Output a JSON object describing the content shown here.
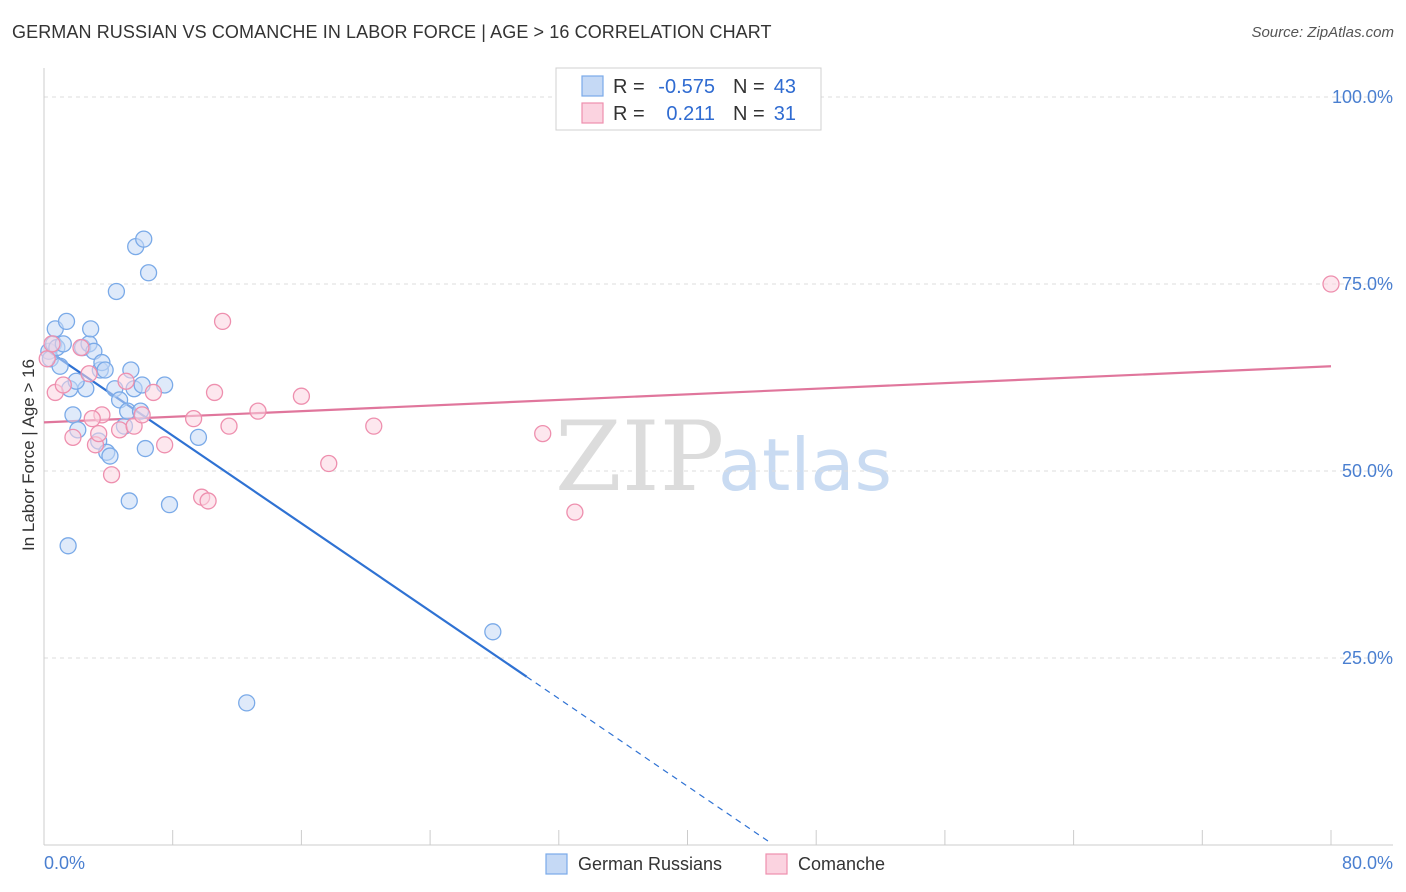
{
  "header": {
    "title": "GERMAN RUSSIAN VS COMANCHE IN LABOR FORCE | AGE > 16 CORRELATION CHART",
    "source": "Source: ZipAtlas.com"
  },
  "watermark": {
    "zip": "ZIP",
    "atlas": "atlas"
  },
  "legend": {
    "r_label": "R =",
    "n_label": "N =",
    "rows": [
      {
        "r": "-0.575",
        "n": "43",
        "color": "#7aaae8",
        "fill": "#c5d9f5"
      },
      {
        "r": "0.211",
        "n": "31",
        "color": "#ee8fae",
        "fill": "#fbd3e0"
      }
    ]
  },
  "chart_data": {
    "type": "scatter",
    "title": "GERMAN RUSSIAN VS COMANCHE IN LABOR FORCE | AGE > 16 CORRELATION CHART",
    "xlabel": "",
    "ylabel": "In Labor Force | Age > 16",
    "xlim": [
      0,
      80
    ],
    "ylim": [
      0,
      100
    ],
    "x_tick_labels": [
      "0.0%",
      "80.0%"
    ],
    "y_tick_labels": [
      "100.0%",
      "75.0%",
      "50.0%",
      "25.0%"
    ],
    "y_ticks": [
      100,
      75,
      50,
      25
    ],
    "series": [
      {
        "name": "German Russians",
        "color": "#7aaae8",
        "fill": "#c5d9f5",
        "line_color": "#2f72d3",
        "trend": {
          "x0": 0.3,
          "y0": 66.0,
          "x1": 30.0,
          "y1": 22.5,
          "dash_to_x": 45.0
        },
        "points": [
          [
            0.3,
            66.0
          ],
          [
            0.4,
            65.0
          ],
          [
            0.6,
            67.0
          ],
          [
            0.7,
            69.0
          ],
          [
            0.8,
            66.5
          ],
          [
            1.0,
            64.0
          ],
          [
            1.2,
            67.0
          ],
          [
            1.4,
            70.0
          ],
          [
            1.6,
            61.0
          ],
          [
            1.8,
            57.5
          ],
          [
            2.1,
            55.5
          ],
          [
            2.4,
            66.5
          ],
          [
            2.6,
            61.0
          ],
          [
            2.8,
            67.0
          ],
          [
            2.9,
            69.0
          ],
          [
            3.1,
            66.0
          ],
          [
            3.4,
            54.0
          ],
          [
            3.5,
            63.5
          ],
          [
            3.6,
            64.5
          ],
          [
            3.8,
            63.5
          ],
          [
            3.9,
            52.5
          ],
          [
            4.1,
            52.0
          ],
          [
            4.4,
            61.0
          ],
          [
            4.5,
            74.0
          ],
          [
            4.7,
            59.5
          ],
          [
            5.0,
            56.0
          ],
          [
            5.2,
            58.0
          ],
          [
            5.3,
            46.0
          ],
          [
            5.4,
            63.5
          ],
          [
            5.6,
            61.0
          ],
          [
            5.7,
            80.0
          ],
          [
            6.0,
            58.0
          ],
          [
            6.1,
            61.5
          ],
          [
            6.2,
            81.0
          ],
          [
            6.3,
            53.0
          ],
          [
            6.5,
            76.5
          ],
          [
            7.5,
            61.5
          ],
          [
            7.8,
            45.5
          ],
          [
            9.6,
            54.5
          ],
          [
            12.6,
            19.0
          ],
          [
            27.9,
            28.5
          ],
          [
            1.5,
            40.0
          ],
          [
            2.0,
            62.0
          ]
        ]
      },
      {
        "name": "Comanche",
        "color": "#ee8fae",
        "fill": "#fbd3e0",
        "line_color": "#e0769c",
        "trend": {
          "x0": 0.0,
          "y0": 56.5,
          "x1": 80.0,
          "y1": 64.0
        },
        "points": [
          [
            0.2,
            65.0
          ],
          [
            0.5,
            67.0
          ],
          [
            0.7,
            60.5
          ],
          [
            1.2,
            61.5
          ],
          [
            1.8,
            54.5
          ],
          [
            2.3,
            66.5
          ],
          [
            2.8,
            63.0
          ],
          [
            3.2,
            53.5
          ],
          [
            3.4,
            55.0
          ],
          [
            3.6,
            57.5
          ],
          [
            4.2,
            49.5
          ],
          [
            4.7,
            55.5
          ],
          [
            5.1,
            62.0
          ],
          [
            5.6,
            56.0
          ],
          [
            6.1,
            57.5
          ],
          [
            6.8,
            60.5
          ],
          [
            7.5,
            53.5
          ],
          [
            9.3,
            57.0
          ],
          [
            9.8,
            46.5
          ],
          [
            10.2,
            46.0
          ],
          [
            10.6,
            60.5
          ],
          [
            11.1,
            70.0
          ],
          [
            11.5,
            56.0
          ],
          [
            13.3,
            58.0
          ],
          [
            16.0,
            60.0
          ],
          [
            17.7,
            51.0
          ],
          [
            20.5,
            56.0
          ],
          [
            31.0,
            55.0
          ],
          [
            33.0,
            44.5
          ],
          [
            80.0,
            75.0
          ],
          [
            3.0,
            57.0
          ]
        ]
      }
    ]
  },
  "bottom_legend": {
    "items": [
      {
        "label": "German Russians",
        "color": "#7aaae8",
        "fill": "#c5d9f5"
      },
      {
        "label": "Comanche",
        "color": "#ee8fae",
        "fill": "#fbd3e0"
      }
    ]
  }
}
